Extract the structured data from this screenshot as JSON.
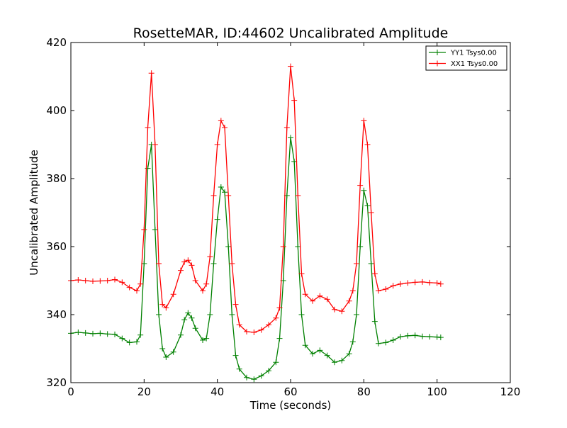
{
  "chart_data": {
    "type": "line",
    "title": "RosetteMAR, ID:44602 Uncalibrated Amplitude",
    "xlabel": "Time (seconds)",
    "ylabel": "Uncalibrated Amplitude",
    "xlim": [
      0,
      120
    ],
    "ylim": [
      320,
      420
    ],
    "xticks": [
      0,
      20,
      40,
      60,
      80,
      100,
      120
    ],
    "yticks": [
      320,
      340,
      360,
      380,
      400,
      420
    ],
    "grid": false,
    "legend_position": "top-right",
    "marker": "+",
    "x": [
      0,
      2,
      4,
      6,
      8,
      10,
      12,
      14,
      16,
      18,
      19,
      20,
      21,
      22,
      23,
      24,
      25,
      26,
      28,
      30,
      31,
      32,
      33,
      34,
      36,
      37,
      38,
      39,
      40,
      41,
      42,
      43,
      44,
      45,
      46,
      48,
      50,
      52,
      54,
      56,
      57,
      58,
      59,
      60,
      61,
      62,
      63,
      64,
      66,
      68,
      70,
      72,
      74,
      76,
      77,
      78,
      79,
      80,
      81,
      82,
      83,
      84,
      86,
      88,
      90,
      92,
      94,
      96,
      98,
      100,
      101
    ],
    "series": [
      {
        "name": "YY1 Tsys0.00",
        "color": "#008000",
        "values": [
          334.5,
          334.8,
          334.6,
          334.4,
          334.5,
          334.3,
          334.2,
          333.0,
          331.8,
          332.0,
          334.0,
          355.0,
          383.0,
          390.0,
          365.0,
          340.0,
          330.0,
          327.5,
          329.0,
          334.0,
          338.5,
          340.5,
          339.0,
          336.0,
          332.5,
          333.0,
          340.0,
          355.0,
          368.0,
          377.5,
          376.0,
          360.0,
          340.0,
          328.0,
          324.0,
          321.5,
          321.0,
          322.0,
          323.5,
          326.0,
          333.0,
          350.0,
          375.0,
          392.0,
          385.0,
          360.0,
          340.0,
          331.0,
          328.5,
          329.5,
          328.0,
          326.0,
          326.5,
          328.5,
          332.0,
          340.0,
          360.0,
          376.5,
          372.0,
          355.0,
          338.0,
          331.5,
          331.8,
          332.5,
          333.5,
          333.8,
          333.9,
          333.6,
          333.5,
          333.4,
          333.3
        ]
      },
      {
        "name": "XX1 Tsys0.00",
        "color": "#ff0000",
        "values": [
          350.0,
          350.2,
          350.0,
          349.8,
          349.9,
          350.0,
          350.3,
          349.5,
          348.0,
          347.0,
          349.0,
          365.0,
          395.0,
          411.0,
          390.0,
          355.0,
          343.0,
          342.0,
          346.0,
          353.0,
          355.5,
          356.0,
          354.5,
          350.0,
          347.0,
          349.0,
          357.0,
          375.0,
          390.0,
          397.0,
          395.0,
          375.0,
          355.0,
          343.0,
          337.0,
          335.0,
          334.8,
          335.5,
          337.0,
          339.0,
          342.0,
          360.0,
          395.0,
          413.0,
          403.0,
          375.0,
          352.0,
          346.0,
          344.0,
          345.5,
          344.5,
          341.5,
          341.0,
          344.0,
          347.0,
          355.0,
          378.0,
          397.0,
          390.0,
          370.0,
          352.0,
          347.0,
          347.5,
          348.5,
          349.0,
          349.3,
          349.5,
          349.6,
          349.4,
          349.3,
          349.0
        ]
      }
    ]
  }
}
